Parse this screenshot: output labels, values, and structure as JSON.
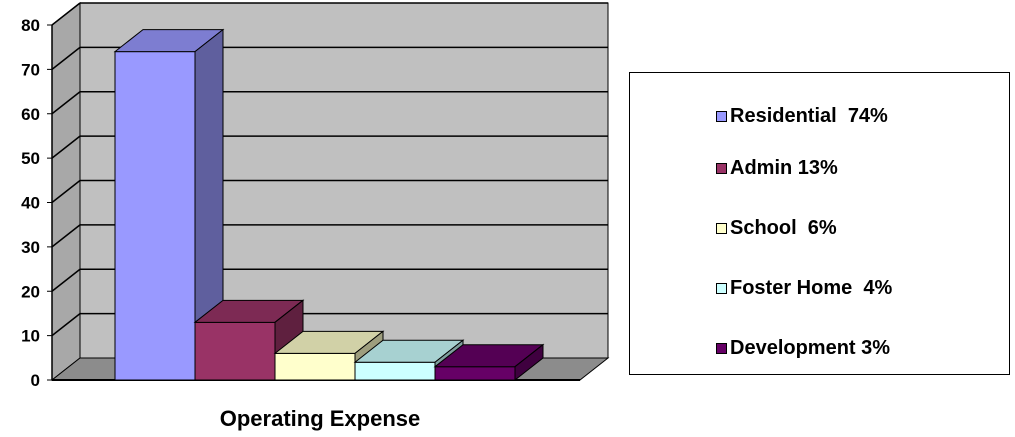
{
  "chart_data": {
    "type": "bar",
    "style": "3d-columns",
    "categories": [
      "Residential",
      "Admin",
      "School",
      "Foster Home",
      "Development"
    ],
    "values": [
      74,
      13,
      6,
      4,
      3
    ],
    "colors": [
      "#9999ff",
      "#993366",
      "#ffffcc",
      "#ccffff",
      "#660066"
    ],
    "xlabel": "Operating Expense",
    "ylabel": "",
    "ylim": [
      0,
      80
    ],
    "yticks": [
      "0",
      "10",
      "20",
      "30",
      "40",
      "50",
      "60",
      "70",
      "80"
    ],
    "grid": true,
    "wall_color": "#c0c0c0",
    "legend": {
      "placement": "right",
      "entries": [
        "Residential  74%",
        "Admin 13%",
        "School  6%",
        "Foster Home  4%",
        "Development 3%"
      ]
    }
  }
}
